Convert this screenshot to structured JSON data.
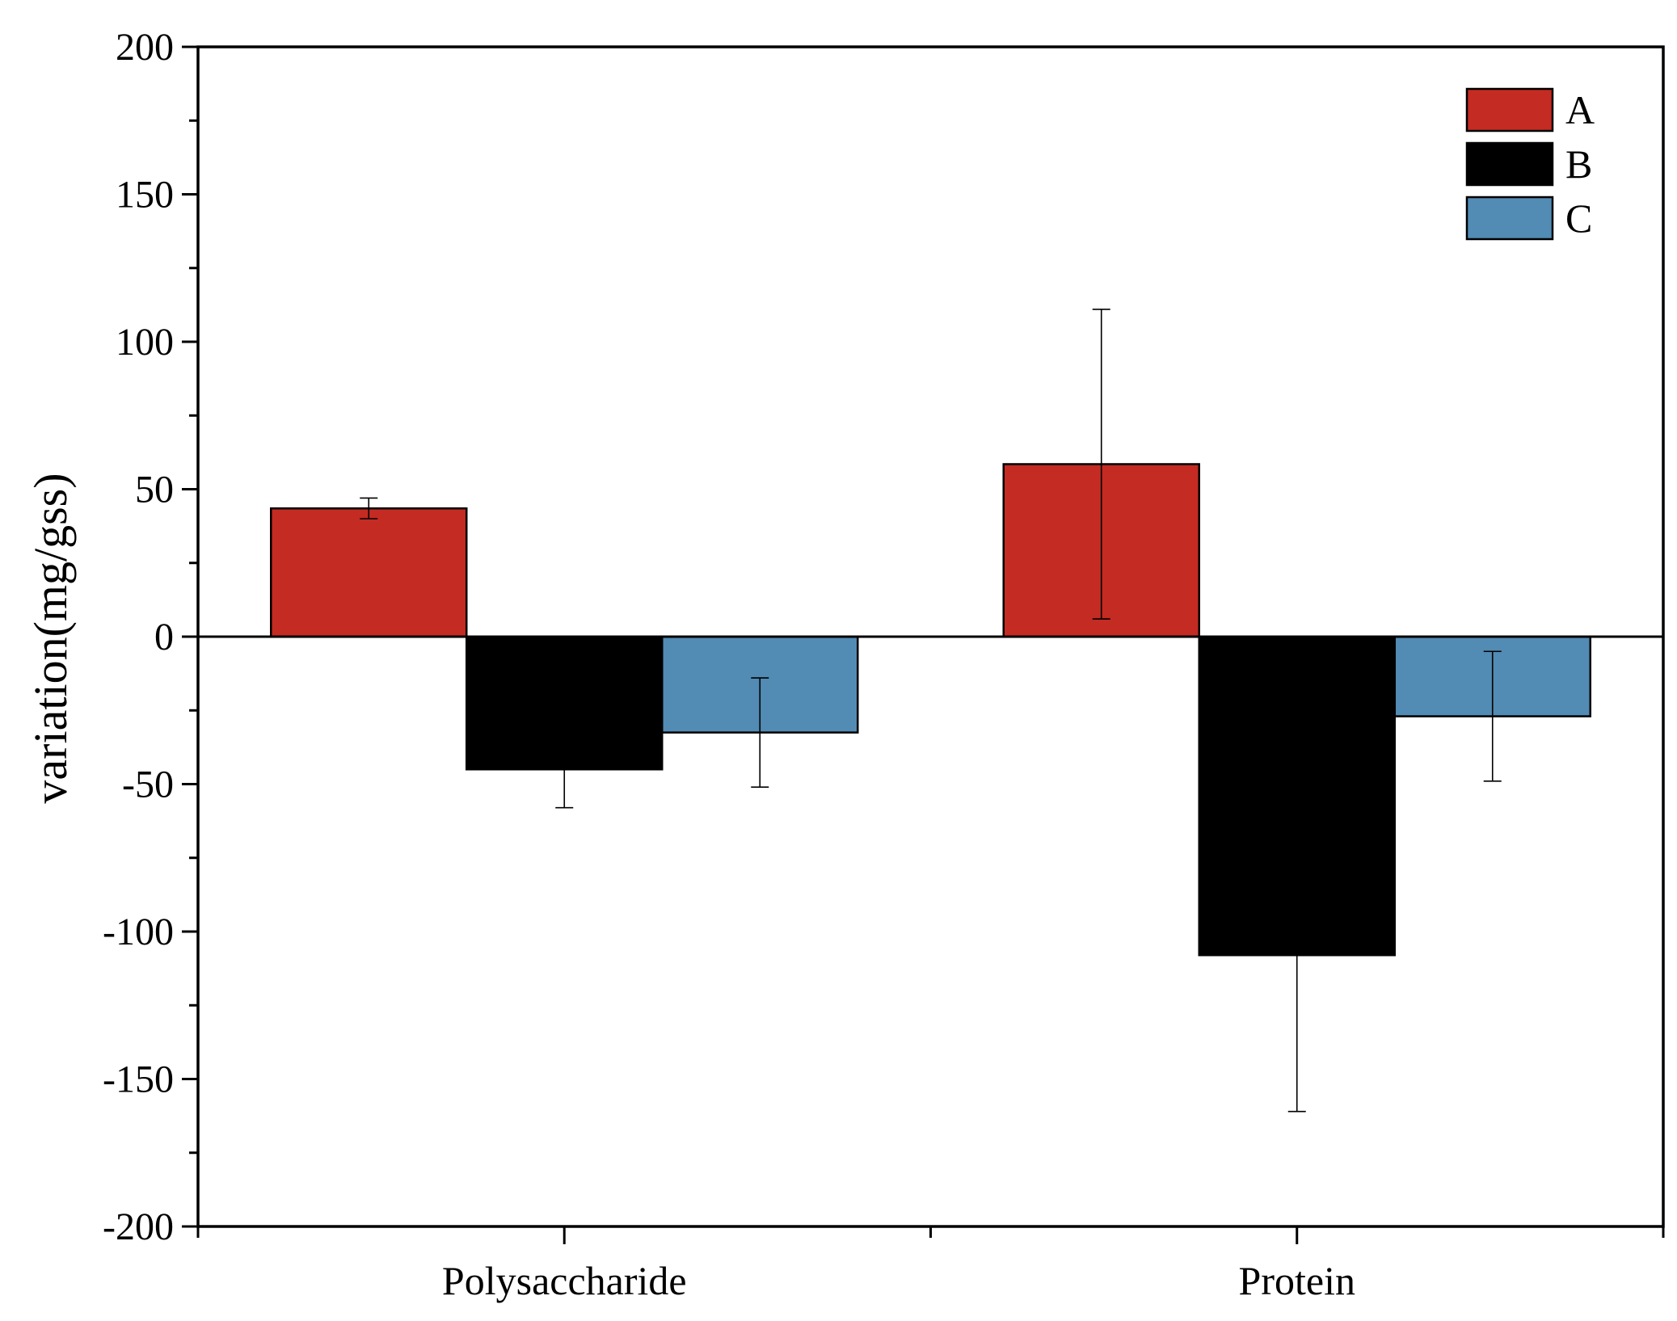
{
  "chart_data": {
    "type": "bar",
    "title": "",
    "xlabel": "",
    "ylabel": "variation(mg/gss)",
    "ylim": [
      -200,
      200
    ],
    "yticks": [
      200,
      150,
      100,
      50,
      0,
      -50,
      -100,
      -150,
      -200
    ],
    "ytick_labels": [
      "200",
      "150",
      "100",
      "50",
      "0",
      "-50",
      "-100",
      "-150",
      "-200"
    ],
    "categories": [
      "Polysaccharide",
      "Protein"
    ],
    "legend_position": "top-right",
    "series": [
      {
        "name": "A",
        "color": "#c42b22",
        "values": [
          43.5,
          58.5
        ],
        "errors": [
          3.5,
          52.5
        ]
      },
      {
        "name": "B",
        "color": "#000000",
        "values": [
          -45,
          -108
        ],
        "errors": [
          13,
          53
        ]
      },
      {
        "name": "C",
        "color": "#528bb3",
        "values": [
          -32.5,
          -27
        ],
        "errors": [
          18.5,
          22
        ]
      }
    ]
  }
}
